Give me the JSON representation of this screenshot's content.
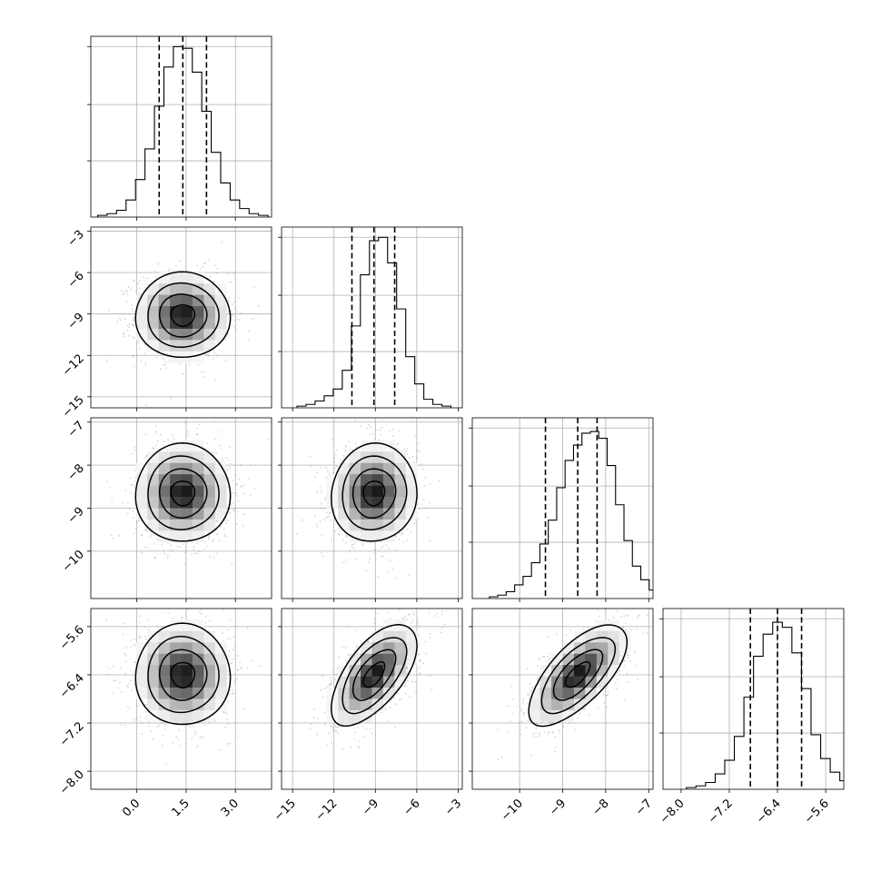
{
  "chart_data": {
    "type": "corner",
    "title": "",
    "parameters": [
      {
        "name": "",
        "lim": [
          -1.4,
          4.1
        ],
        "ticks": [
          0.0,
          1.5,
          3.0
        ],
        "tick_labels": [
          "0.0",
          "1.5",
          "3.0"
        ],
        "mean": 1.4,
        "sd": 0.72,
        "quantiles": [
          0.68,
          1.4,
          2.12
        ],
        "hist_counts": [
          1,
          2,
          4,
          10,
          22,
          40,
          65,
          88,
          100,
          99,
          85,
          62,
          38,
          20,
          10,
          5,
          2,
          1
        ]
      },
      {
        "name": "",
        "lim": [
          -15.8,
          -2.7
        ],
        "ticks": [
          -15,
          -12,
          -9,
          -6,
          -3
        ],
        "tick_labels": [
          "−15",
          "−12",
          "−9",
          "−6",
          "−3"
        ],
        "mean": -9.1,
        "sd": 1.55,
        "quantiles": [
          -10.7,
          -9.1,
          -7.6
        ],
        "hist_counts": [
          1,
          2,
          4,
          7,
          11,
          22,
          48,
          78,
          98,
          100,
          85,
          58,
          30,
          14,
          5,
          2,
          1
        ]
      },
      {
        "name": "",
        "lim": [
          -11.1,
          -6.9
        ],
        "ticks": [
          -10,
          -9,
          -8,
          -7
        ],
        "tick_labels": [
          "−10",
          "−9",
          "−8",
          "−7"
        ],
        "mean": -8.65,
        "sd": 0.57,
        "quantiles": [
          -9.4,
          -8.65,
          -8.2
        ],
        "hist_counts": [
          1,
          2,
          4,
          8,
          13,
          21,
          32,
          46,
          65,
          81,
          90,
          97,
          98,
          94,
          78,
          55,
          34,
          19,
          11,
          5,
          1
        ]
      },
      {
        "name": "",
        "lim": [
          -8.3,
          -5.3
        ],
        "ticks": [
          -8.0,
          -7.2,
          -6.4,
          -5.6
        ],
        "tick_labels": [
          "−8.0",
          "−7.2",
          "−6.4",
          "−5.6"
        ],
        "mean": -6.4,
        "sd": 0.42,
        "quantiles": [
          -6.85,
          -6.4,
          -6.0
        ],
        "hist_counts": [
          1,
          2,
          4,
          9,
          17,
          31,
          54,
          78,
          91,
          98,
          95,
          80,
          59,
          32,
          18,
          10,
          5,
          2,
          1
        ]
      }
    ],
    "correlations": [
      [
        1,
        0,
        0,
        0
      ],
      [
        0,
        1,
        0.05,
        0.62
      ],
      [
        0,
        0.05,
        1,
        0.68
      ],
      [
        0,
        0.62,
        0.68,
        1
      ]
    ],
    "hist_label_ticks": [
      0.33,
      0.66,
      1.0
    ],
    "contour_levels": [
      0.5,
      1.0,
      1.5,
      2.0
    ],
    "grid": true,
    "line_color": "#000000",
    "point_color": "#8c8c8c"
  }
}
